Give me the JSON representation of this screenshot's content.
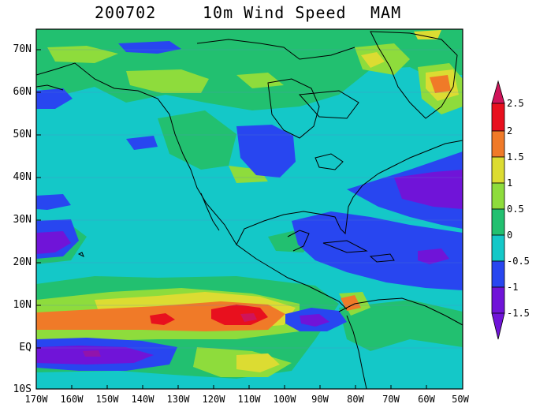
{
  "title": {
    "date": "200702",
    "field": "10m Wind Speed",
    "season": "MAM"
  },
  "map": {
    "lat_labels": [
      "70N",
      "60N",
      "50N",
      "40N",
      "30N",
      "20N",
      "10N",
      "EQ",
      "10S"
    ],
    "lon_labels": [
      "170W",
      "160W",
      "150W",
      "140W",
      "130W",
      "120W",
      "110W",
      "100W",
      "90W",
      "80W",
      "70W",
      "60W",
      "50W"
    ],
    "lat_range": [
      -10,
      75
    ],
    "lon_range": [
      -170,
      -50
    ]
  },
  "colorbar": {
    "labels": [
      "2.5",
      "2",
      "1.5",
      "1",
      "0.5",
      "0",
      "-0.5",
      "-1",
      "-1.5"
    ],
    "colors": [
      "#d0145a",
      "#e8101e",
      "#f07a28",
      "#dcdc32",
      "#8edc3c",
      "#22c070",
      "#14c8c8",
      "#2846f0",
      "#7014d8"
    ]
  }
}
